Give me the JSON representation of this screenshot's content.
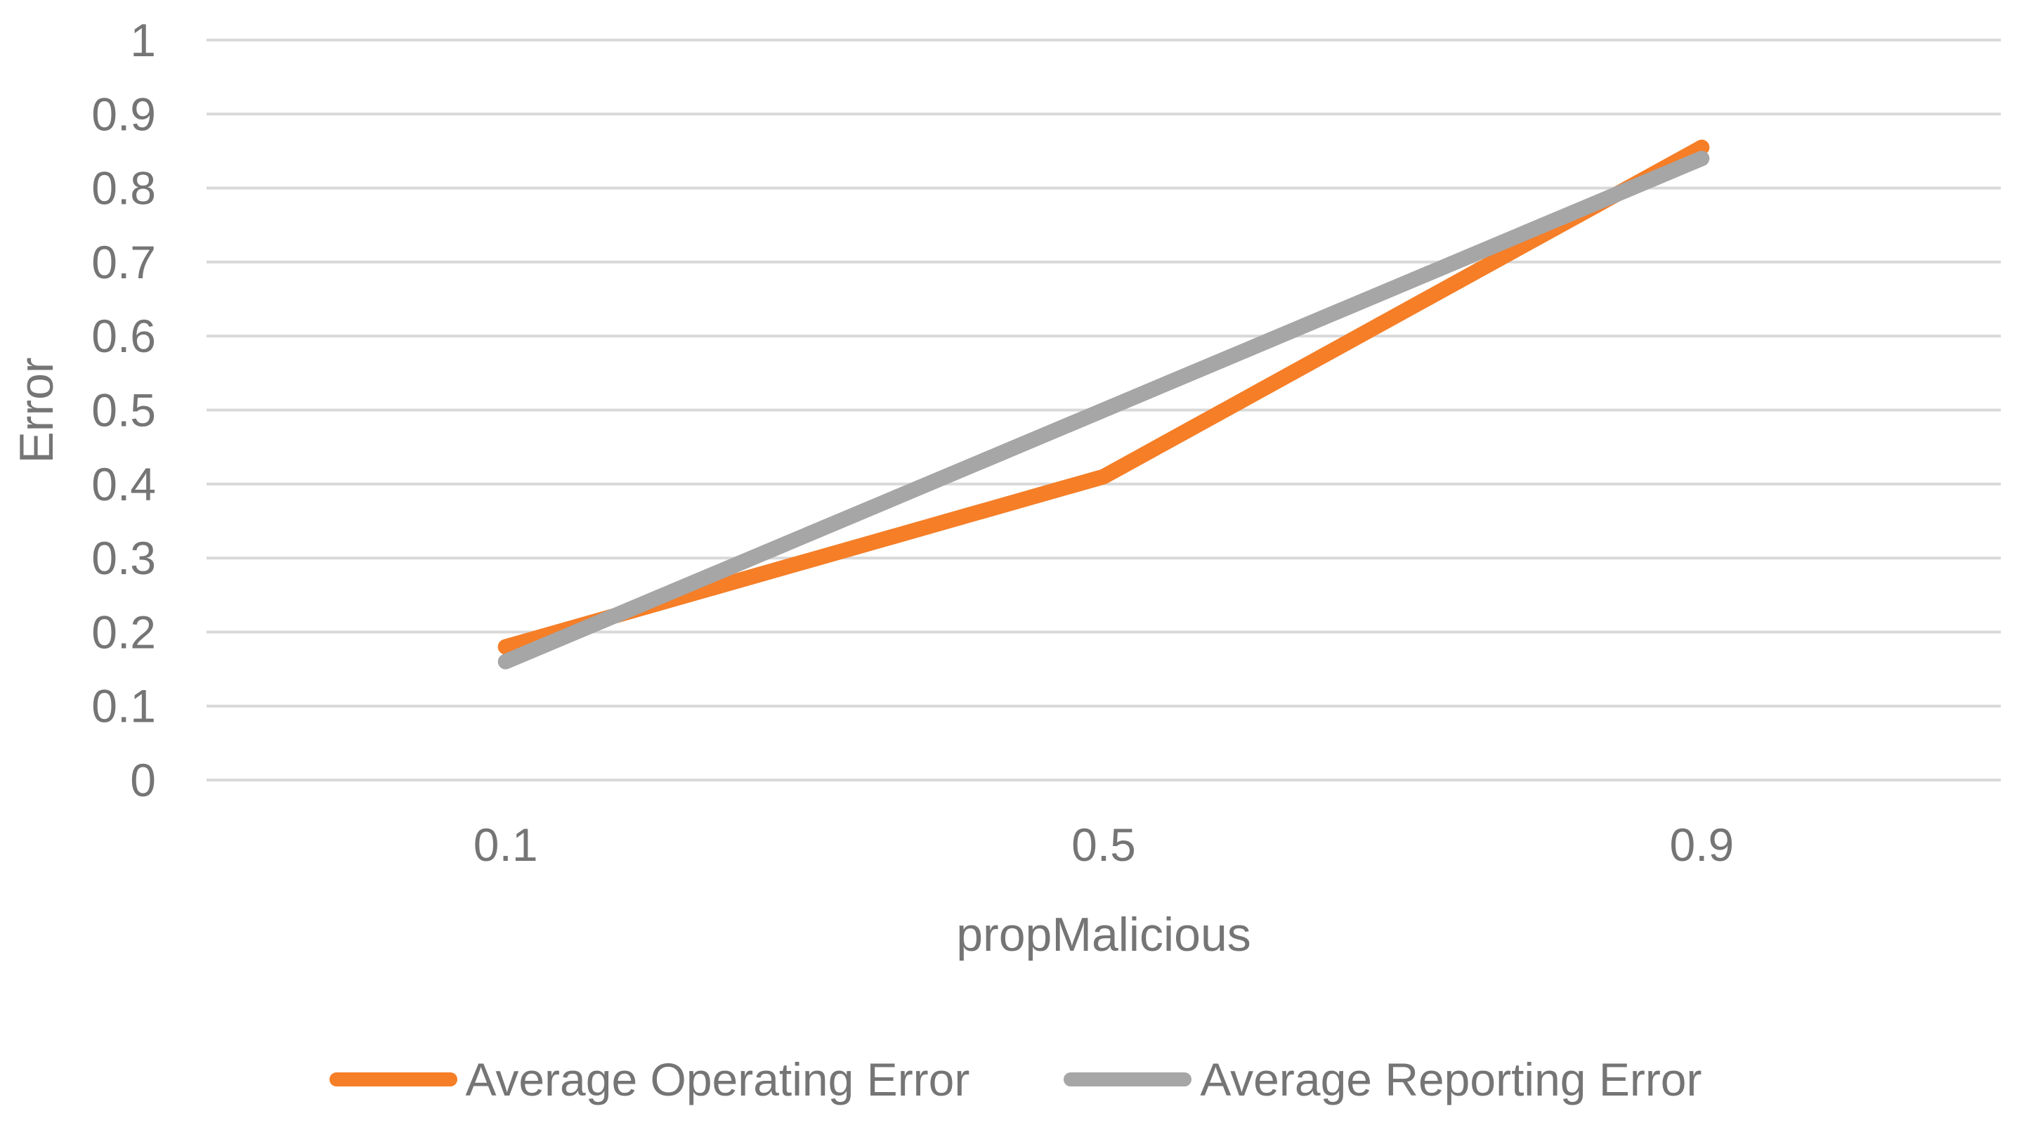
{
  "chart_data": {
    "type": "line",
    "title": "",
    "xlabel": "propMalicious",
    "ylabel": "Error",
    "x_categories": [
      "0.1",
      "0.5",
      "0.9"
    ],
    "ylim": [
      0,
      1
    ],
    "y_ticks": [
      {
        "value": 1,
        "label": "1"
      },
      {
        "value": 0.9,
        "label": "0.9"
      },
      {
        "value": 0.8,
        "label": "0.8"
      },
      {
        "value": 0.7,
        "label": "0.7"
      },
      {
        "value": 0.6,
        "label": "0.6"
      },
      {
        "value": 0.5,
        "label": "0.5"
      },
      {
        "value": 0.4,
        "label": "0.4"
      },
      {
        "value": 0.3,
        "label": "0.3"
      },
      {
        "value": 0.2,
        "label": "0.2"
      },
      {
        "value": 0.1,
        "label": "0.1"
      },
      {
        "value": 0,
        "label": "0"
      }
    ],
    "grid": "horizontal",
    "legend_position": "bottom",
    "series": [
      {
        "name": "Average Operating Error",
        "color": "#F57E27",
        "values": [
          0.18,
          0.41,
          0.855
        ]
      },
      {
        "name": "Average Reporting Error",
        "color": "#A6A6A6",
        "values": [
          0.16,
          0.5,
          0.84
        ]
      }
    ]
  },
  "colors": {
    "gridline": "#D9D9D9",
    "axis_text": "#757575"
  }
}
